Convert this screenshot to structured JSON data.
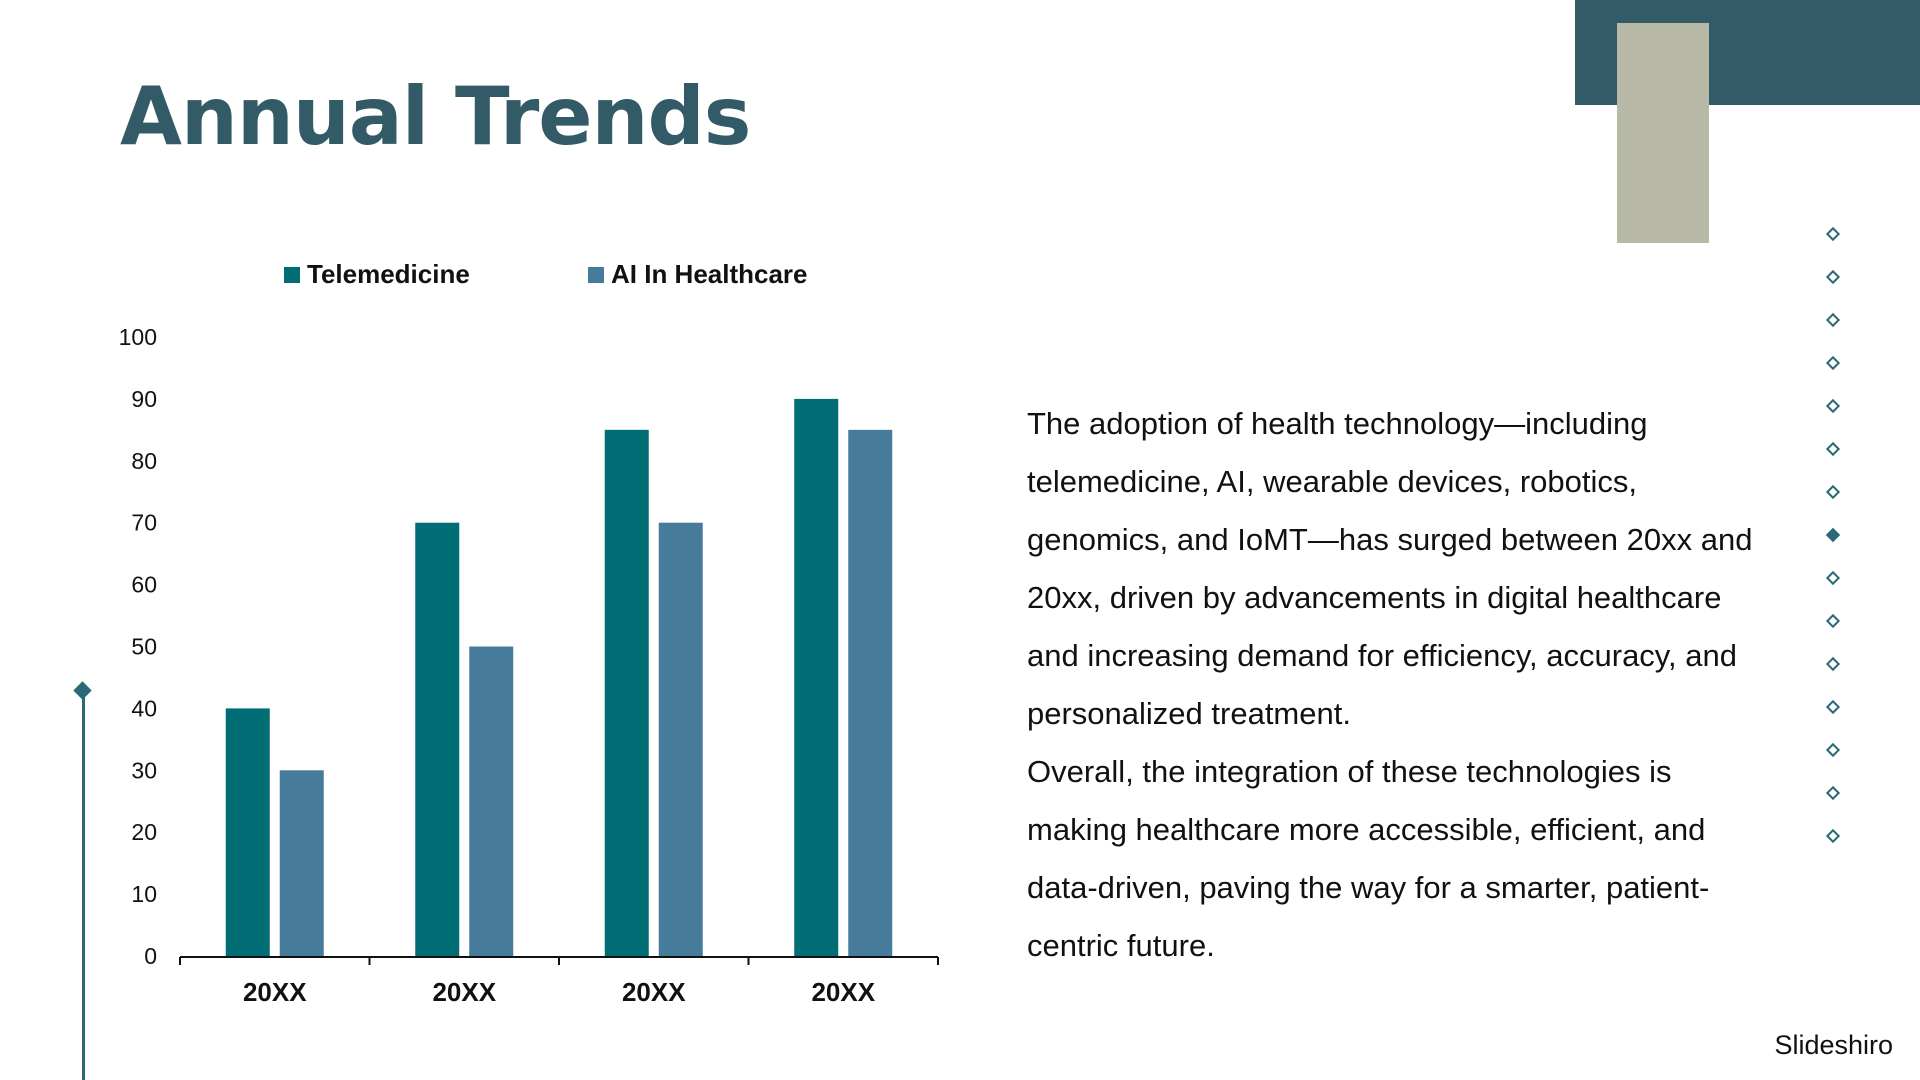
{
  "slide": {
    "title": "Annual Trends",
    "paragraphs": [
      "The adoption of health technology—including telemedicine, AI, wearable devices, robotics, genomics, and IoMT—has surged between 20xx and 20xx, driven by advancements in digital healthcare and increasing demand for efficiency, accuracy, and personalized treatment.",
      "Overall, the integration of these technologies is making healthcare more accessible, efficient, and data-driven, paving the way for a smarter, patient-centric future."
    ],
    "brand": "Slideshiro"
  },
  "decor": {
    "diamond_count": 15,
    "filled_diamond_index": 7,
    "colors": {
      "dark_teal": "#335b67",
      "beige": "#b8b8a6",
      "accent": "#2a6a78"
    }
  },
  "chart_data": {
    "type": "bar",
    "title": "",
    "xlabel": "",
    "ylabel": "",
    "categories": [
      "20XX",
      "20XX",
      "20XX",
      "20XX"
    ],
    "series": [
      {
        "name": "Telemedicine",
        "values": [
          40,
          70,
          85,
          90
        ],
        "color": "#006e74"
      },
      {
        "name": "AI In Healthcare",
        "values": [
          30,
          50,
          70,
          85
        ],
        "color": "#477b9c"
      }
    ],
    "ylim": [
      0,
      100
    ],
    "yticks": [
      0,
      10,
      20,
      30,
      40,
      50,
      60,
      70,
      80,
      90,
      100
    ],
    "legend_position": "top",
    "grid": false
  }
}
